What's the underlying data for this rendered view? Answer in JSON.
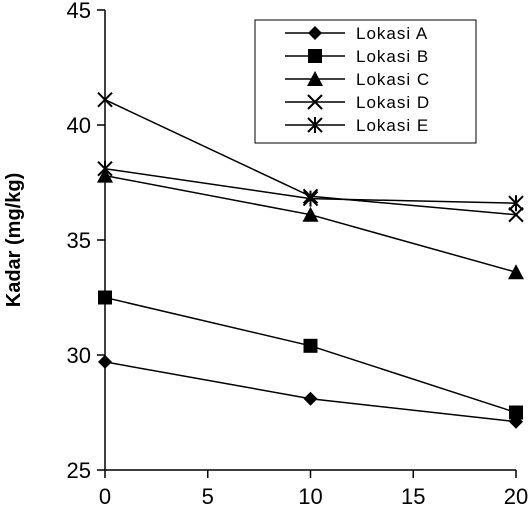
{
  "chart_data": {
    "type": "line",
    "ylabel": "Kadar (mg/kg)",
    "xlabel": "",
    "x": [
      0,
      10,
      20
    ],
    "xticks": [
      "0",
      "5",
      "10",
      "15",
      "20"
    ],
    "yticks": [
      "25",
      "30",
      "35",
      "40",
      "45"
    ],
    "xlim": [
      0,
      20
    ],
    "ylim": [
      25,
      45
    ],
    "grid": false,
    "legend_position": "top-right",
    "series": [
      {
        "name": "Lokasi A",
        "marker": "diamond",
        "values": [
          29.7,
          28.1,
          27.1
        ]
      },
      {
        "name": "Lokasi B",
        "marker": "square",
        "values": [
          32.5,
          30.4,
          27.5
        ]
      },
      {
        "name": "Lokasi C",
        "marker": "triangle",
        "values": [
          37.8,
          36.1,
          33.6
        ]
      },
      {
        "name": "Lokasi D",
        "marker": "x",
        "values": [
          41.1,
          36.9,
          36.1
        ]
      },
      {
        "name": "Lokasi E",
        "marker": "star",
        "values": [
          38.1,
          36.8,
          36.6
        ]
      }
    ],
    "colors": {
      "line": "#000000",
      "background": "#ffffff"
    }
  }
}
